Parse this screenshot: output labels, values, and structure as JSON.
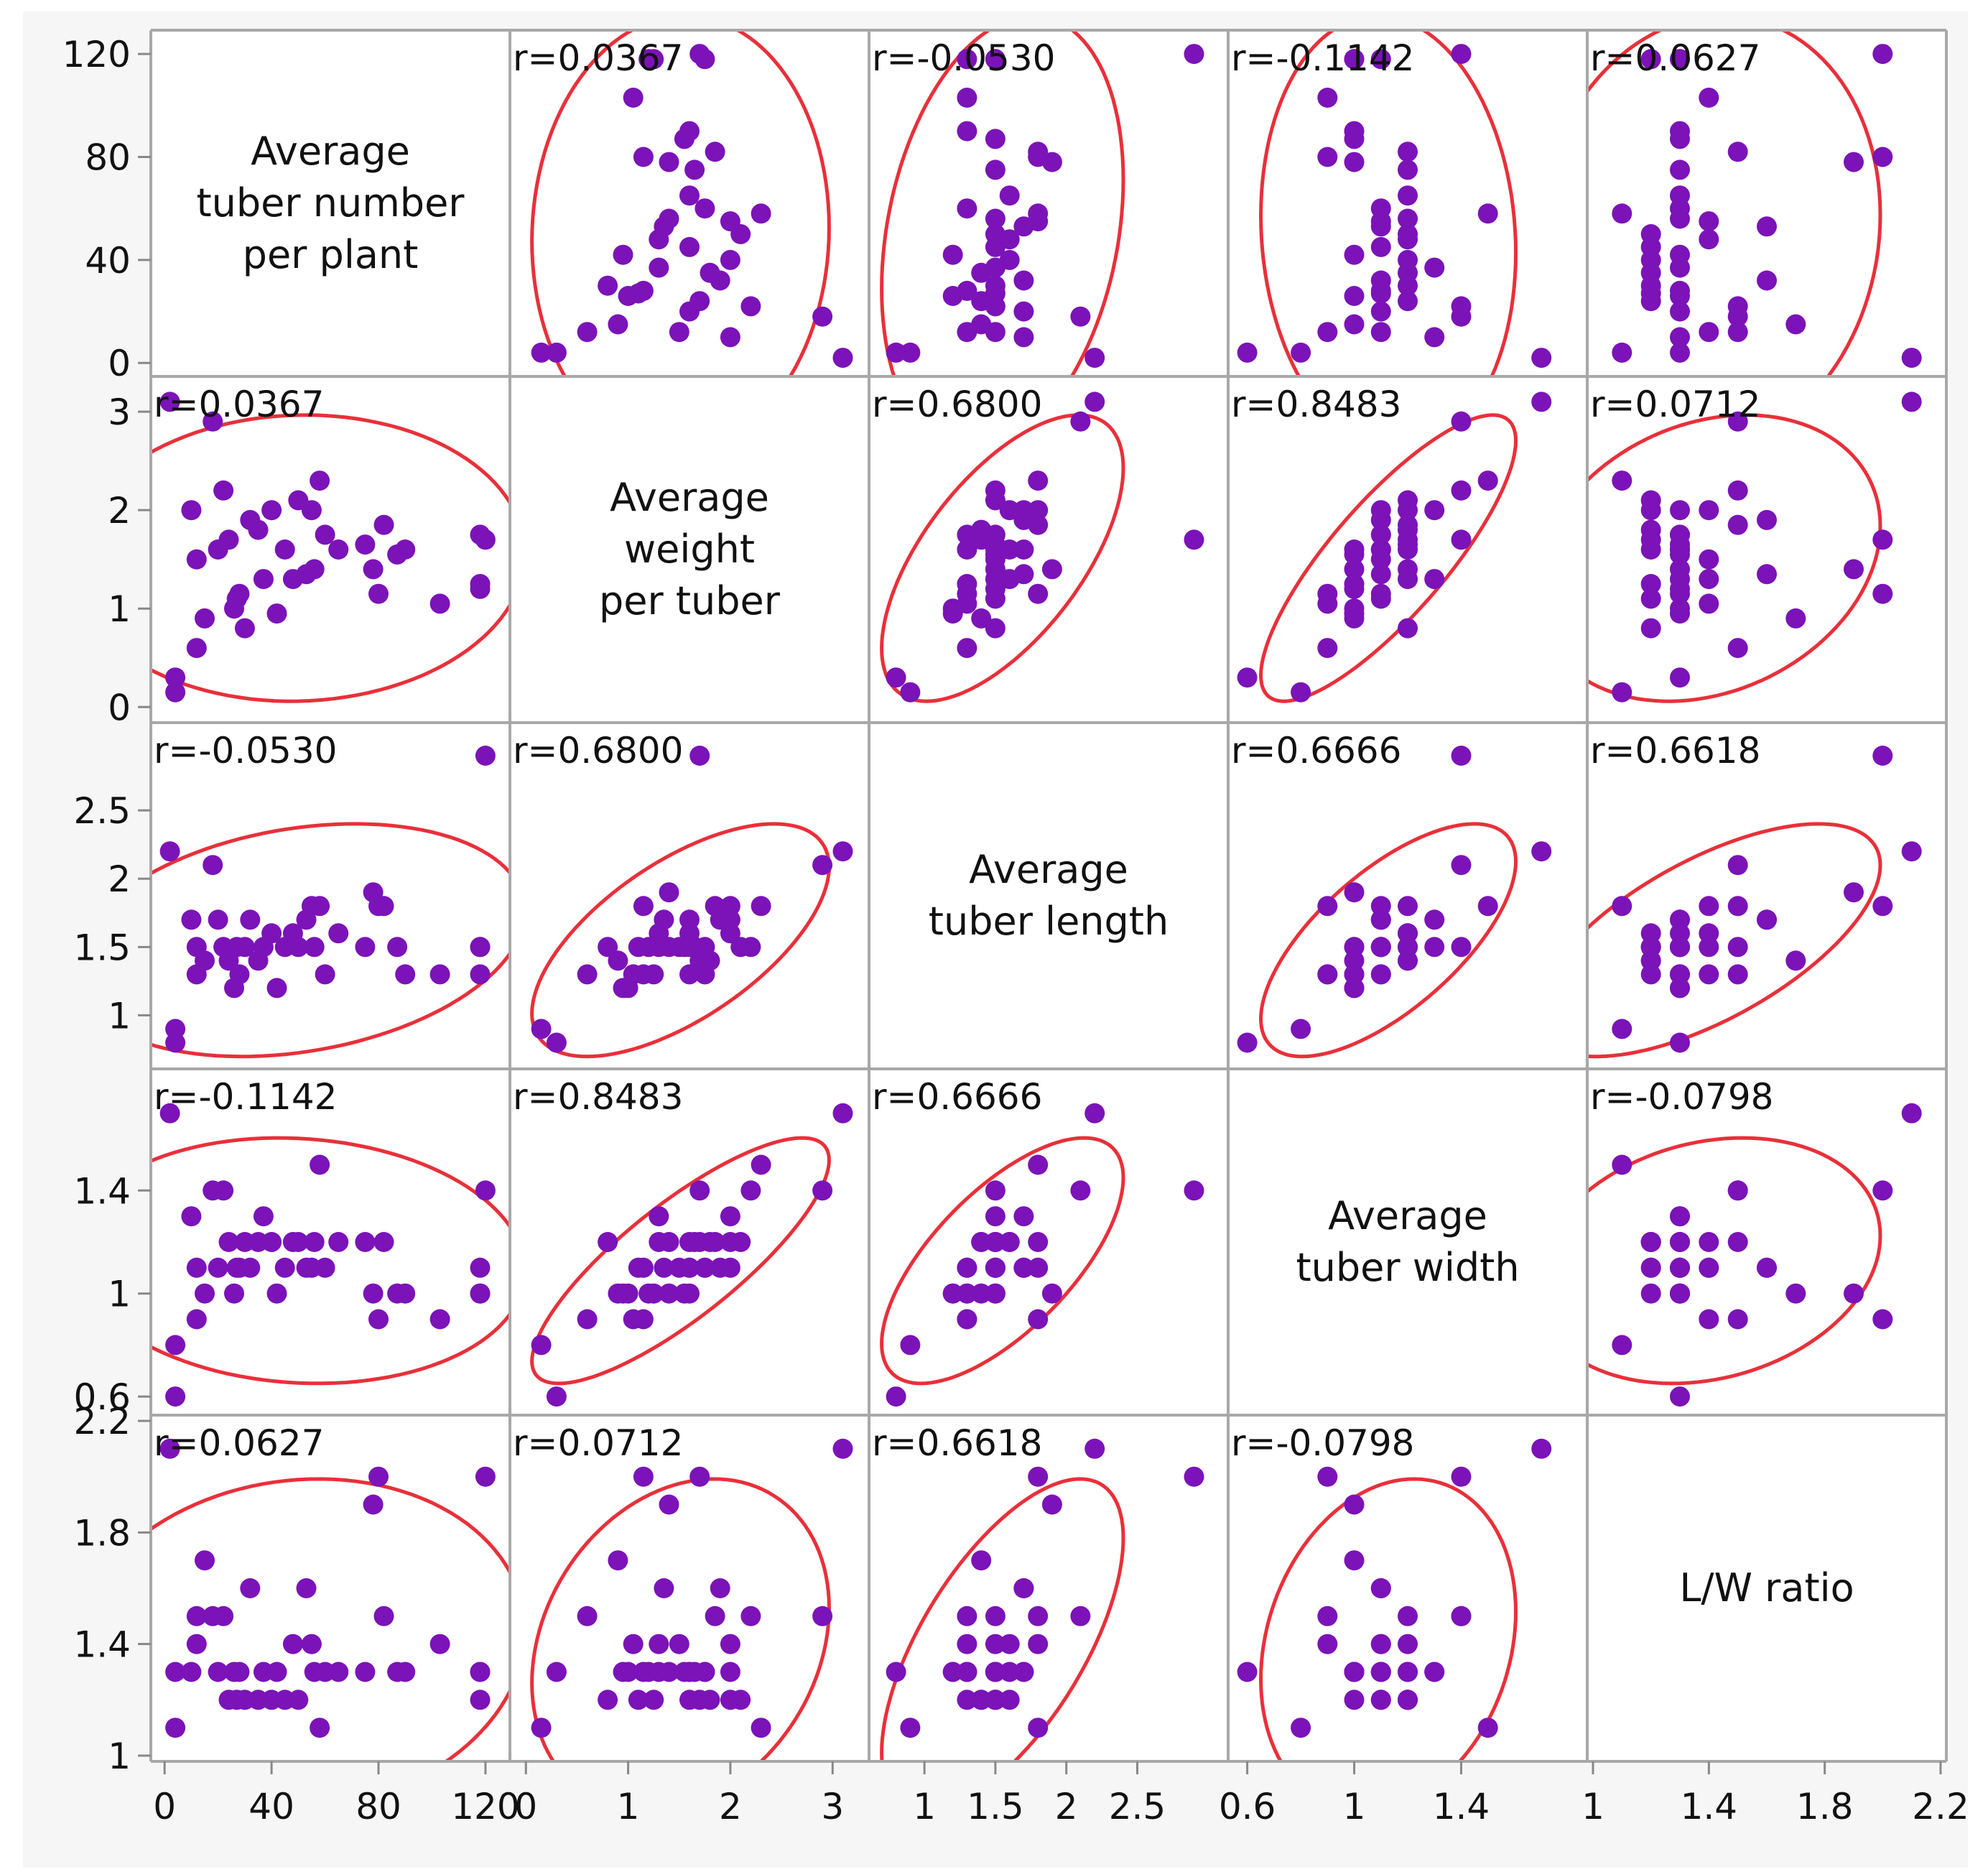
{
  "chart_data": {
    "type": "scatter",
    "subtype": "scatterplot-matrix",
    "ellipse_color": "#e8303a",
    "point_color": "#7b13b8",
    "grid": false,
    "variables": [
      {
        "id": "num",
        "label_lines": [
          "Average",
          "tuber number",
          "per plant"
        ],
        "axis_range": [
          -3,
          127
        ],
        "tick_labels": [
          "0",
          "40",
          "80",
          "120"
        ],
        "tick_values": [
          0,
          40,
          80,
          120
        ]
      },
      {
        "id": "weight",
        "label_lines": [
          "Average",
          "weight",
          "per tuber"
        ],
        "axis_range": [
          -0.1,
          3.3
        ],
        "tick_labels": [
          "0",
          "1",
          "2",
          "3"
        ],
        "tick_values": [
          0,
          1,
          2,
          3
        ]
      },
      {
        "id": "length",
        "label_lines": [
          "Average",
          "tuber length"
        ],
        "axis_range": [
          0.65,
          3.1
        ],
        "tick_labels": [
          "1",
          "1.5",
          "2",
          "2.5"
        ],
        "tick_values": [
          1,
          1.5,
          2,
          2.5
        ]
      },
      {
        "id": "width",
        "label_lines": [
          "Average",
          "tuber width"
        ],
        "axis_range": [
          0.55,
          1.85
        ],
        "tick_labels": [
          "0.6",
          "1",
          "1.4"
        ],
        "tick_values": [
          0.6,
          1.0,
          1.4
        ]
      },
      {
        "id": "lw",
        "label_lines": [
          "L/W ratio"
        ],
        "axis_range": [
          1.0,
          2.2
        ],
        "tick_labels": [
          "1",
          "1.4",
          "1.8",
          "2.2"
        ],
        "tick_values": [
          1.0,
          1.4,
          1.8,
          2.2
        ]
      }
    ],
    "correlations": {
      "num-weight": "r=0.0367",
      "num-length": "r=-0.0530",
      "num-width": "r=-0.1142",
      "num-lw": "r=0.0627",
      "weight-length": "r=0.6800",
      "weight-width": "r=0.8483",
      "weight-lw": "r=0.0712",
      "length-width": "r=0.6666",
      "length-lw": "r=0.6618",
      "width-lw": "r=-0.0798"
    },
    "observations": [
      {
        "num": 2,
        "weight": 3.1,
        "length": 2.2,
        "width": 1.7,
        "lw": 2.1
      },
      {
        "num": 120,
        "weight": 1.7,
        "length": 2.9,
        "width": 1.4,
        "lw": 2.0
      },
      {
        "num": 4,
        "weight": 0.15,
        "length": 0.9,
        "width": 0.8,
        "lw": 1.1
      },
      {
        "num": 4,
        "weight": 0.3,
        "length": 0.8,
        "width": 0.6,
        "lw": 1.3
      },
      {
        "num": 10,
        "weight": 2.0,
        "length": 1.7,
        "width": 1.3,
        "lw": 1.3
      },
      {
        "num": 12,
        "weight": 0.6,
        "length": 1.3,
        "width": 0.9,
        "lw": 1.5
      },
      {
        "num": 18,
        "weight": 2.9,
        "length": 2.1,
        "width": 1.4,
        "lw": 1.5
      },
      {
        "num": 12,
        "weight": 1.5,
        "length": 1.5,
        "width": 1.1,
        "lw": 1.4
      },
      {
        "num": 15,
        "weight": 0.9,
        "length": 1.4,
        "width": 1.0,
        "lw": 1.7
      },
      {
        "num": 20,
        "weight": 1.6,
        "length": 1.7,
        "width": 1.1,
        "lw": 1.3
      },
      {
        "num": 22,
        "weight": 2.2,
        "length": 1.5,
        "width": 1.4,
        "lw": 1.5
      },
      {
        "num": 24,
        "weight": 1.7,
        "length": 1.4,
        "width": 1.2,
        "lw": 1.2
      },
      {
        "num": 26,
        "weight": 1.0,
        "length": 1.2,
        "width": 1.0,
        "lw": 1.3
      },
      {
        "num": 27,
        "weight": 1.1,
        "length": 1.5,
        "width": 1.1,
        "lw": 1.2
      },
      {
        "num": 28,
        "weight": 1.15,
        "length": 1.3,
        "width": 1.1,
        "lw": 1.3
      },
      {
        "num": 30,
        "weight": 0.8,
        "length": 1.5,
        "width": 1.2,
        "lw": 1.2
      },
      {
        "num": 32,
        "weight": 1.9,
        "length": 1.7,
        "width": 1.1,
        "lw": 1.6
      },
      {
        "num": 35,
        "weight": 1.8,
        "length": 1.4,
        "width": 1.2,
        "lw": 1.2
      },
      {
        "num": 37,
        "weight": 1.3,
        "length": 1.5,
        "width": 1.3,
        "lw": 1.3
      },
      {
        "num": 40,
        "weight": 2.0,
        "length": 1.6,
        "width": 1.2,
        "lw": 1.2
      },
      {
        "num": 42,
        "weight": 0.95,
        "length": 1.2,
        "width": 1.0,
        "lw": 1.3
      },
      {
        "num": 45,
        "weight": 1.6,
        "length": 1.5,
        "width": 1.1,
        "lw": 1.2
      },
      {
        "num": 48,
        "weight": 1.3,
        "length": 1.6,
        "width": 1.2,
        "lw": 1.4
      },
      {
        "num": 50,
        "weight": 2.1,
        "length": 1.5,
        "width": 1.2,
        "lw": 1.2
      },
      {
        "num": 53,
        "weight": 1.35,
        "length": 1.7,
        "width": 1.1,
        "lw": 1.6
      },
      {
        "num": 55,
        "weight": 2.0,
        "length": 1.8,
        "width": 1.1,
        "lw": 1.4
      },
      {
        "num": 56,
        "weight": 1.4,
        "length": 1.5,
        "width": 1.2,
        "lw": 1.3
      },
      {
        "num": 58,
        "weight": 2.3,
        "length": 1.8,
        "width": 1.5,
        "lw": 1.1
      },
      {
        "num": 60,
        "weight": 1.75,
        "length": 1.3,
        "width": 1.1,
        "lw": 1.3
      },
      {
        "num": 65,
        "weight": 1.6,
        "length": 1.6,
        "width": 1.2,
        "lw": 1.3
      },
      {
        "num": 75,
        "weight": 1.65,
        "length": 1.5,
        "width": 1.2,
        "lw": 1.3
      },
      {
        "num": 78,
        "weight": 1.4,
        "length": 1.9,
        "width": 1.0,
        "lw": 1.9
      },
      {
        "num": 80,
        "weight": 1.15,
        "length": 1.8,
        "width": 0.9,
        "lw": 2.0
      },
      {
        "num": 82,
        "weight": 1.85,
        "length": 1.8,
        "width": 1.2,
        "lw": 1.5
      },
      {
        "num": 87,
        "weight": 1.55,
        "length": 1.5,
        "width": 1.0,
        "lw": 1.3
      },
      {
        "num": 90,
        "weight": 1.6,
        "length": 1.3,
        "width": 1.0,
        "lw": 1.3
      },
      {
        "num": 103,
        "weight": 1.05,
        "length": 1.3,
        "width": 0.9,
        "lw": 1.4
      },
      {
        "num": 118,
        "weight": 1.75,
        "length": 1.5,
        "width": 1.1,
        "lw": 1.3
      },
      {
        "num": 118,
        "weight": 1.25,
        "length": 1.3,
        "width": 1.0,
        "lw": 1.2
      },
      {
        "num": 118,
        "weight": 1.2,
        "length": 1.5,
        "width": 1.0,
        "lw": 1.3
      }
    ]
  }
}
